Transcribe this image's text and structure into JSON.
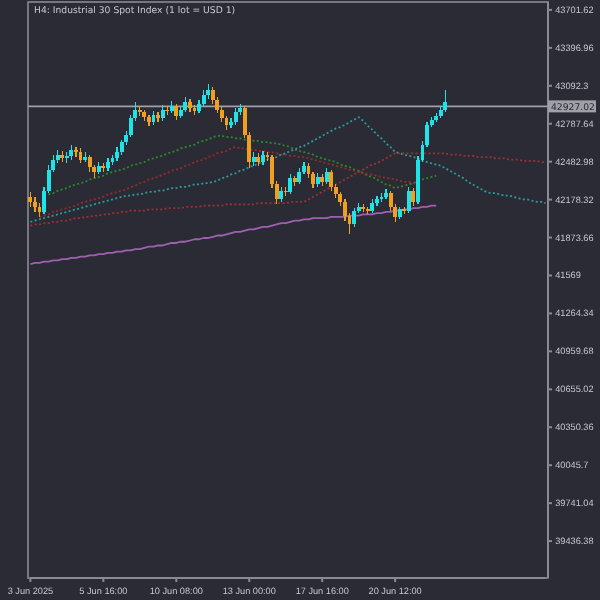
{
  "chart_data": {
    "type": "candlestick",
    "title": "H4: Industrial 30 Spot Index (1 lot = USD 1)",
    "categories": [
      "3 Jun 2025",
      null,
      null,
      null,
      null,
      null,
      null,
      null,
      null,
      null,
      null,
      null,
      null,
      null,
      null,
      null,
      "5 Jun 16:00",
      null,
      null,
      null,
      null,
      null,
      null,
      null,
      null,
      null,
      null,
      null,
      null,
      null,
      null,
      null,
      "10 Jun 08:00",
      null,
      null,
      null,
      null,
      null,
      null,
      null,
      null,
      null,
      null,
      null,
      null,
      null,
      null,
      null,
      "13 Jun 00:00",
      null,
      null,
      null,
      null,
      null,
      null,
      null,
      null,
      null,
      null,
      null,
      null,
      null,
      null,
      null,
      "17 Jun 16:00",
      null,
      null,
      null,
      null,
      null,
      null,
      null,
      null,
      null,
      null,
      null,
      null,
      null,
      null,
      null,
      "20 Jun 12:00",
      null,
      null,
      null,
      null,
      null,
      null,
      null,
      null,
      null,
      null,
      null,
      null,
      null,
      null,
      null,
      null,
      null,
      null,
      null,
      null,
      null,
      null,
      null,
      null,
      null,
      null,
      null,
      null,
      null,
      null,
      null,
      null,
      null
    ],
    "ohlc": [
      [
        42200,
        42240,
        42120,
        42160
      ],
      [
        42160,
        42200,
        42080,
        42120
      ],
      [
        42120,
        42150,
        42040,
        42080
      ],
      [
        42080,
        42280,
        42060,
        42250
      ],
      [
        42250,
        42460,
        42230,
        42420
      ],
      [
        42420,
        42540,
        42400,
        42500
      ],
      [
        42500,
        42580,
        42470,
        42540
      ],
      [
        42540,
        42570,
        42480,
        42510
      ],
      [
        42510,
        42560,
        42470,
        42530
      ],
      [
        42530,
        42620,
        42500,
        42580
      ],
      [
        42580,
        42600,
        42520,
        42560
      ],
      [
        42560,
        42590,
        42470,
        42500
      ],
      [
        42500,
        42560,
        42480,
        42520
      ],
      [
        42520,
        42540,
        42400,
        42440
      ],
      [
        42440,
        42460,
        42350,
        42400
      ],
      [
        42400,
        42480,
        42380,
        42450
      ],
      [
        42450,
        42470,
        42400,
        42430
      ],
      [
        42430,
        42510,
        42410,
        42480
      ],
      [
        42480,
        42540,
        42460,
        42510
      ],
      [
        42510,
        42600,
        42490,
        42560
      ],
      [
        42560,
        42660,
        42540,
        42640
      ],
      [
        42640,
        42730,
        42620,
        42700
      ],
      [
        42700,
        42860,
        42680,
        42830
      ],
      [
        42830,
        42960,
        42810,
        42900
      ],
      [
        42900,
        42930,
        42850,
        42880
      ],
      [
        42880,
        42900,
        42810,
        42840
      ],
      [
        42840,
        42860,
        42770,
        42800
      ],
      [
        42800,
        42890,
        42780,
        42860
      ],
      [
        42860,
        42880,
        42800,
        42830
      ],
      [
        42830,
        42940,
        42810,
        42900
      ],
      [
        42900,
        42930,
        42860,
        42890
      ],
      [
        42890,
        42970,
        42870,
        42930
      ],
      [
        42930,
        42950,
        42820,
        42850
      ],
      [
        42850,
        42930,
        42830,
        42900
      ],
      [
        42900,
        43000,
        42880,
        42960
      ],
      [
        42960,
        42990,
        42880,
        42910
      ],
      [
        42910,
        42940,
        42860,
        42890
      ],
      [
        42890,
        42980,
        42870,
        42950
      ],
      [
        42950,
        43060,
        42930,
        43020
      ],
      [
        43020,
        43110,
        42990,
        43060
      ],
      [
        43060,
        43080,
        42950,
        42980
      ],
      [
        42980,
        43000,
        42870,
        42900
      ],
      [
        42900,
        42920,
        42800,
        42830
      ],
      [
        42830,
        42850,
        42740,
        42780
      ],
      [
        42780,
        42830,
        42750,
        42800
      ],
      [
        42800,
        42910,
        42780,
        42880
      ],
      [
        42880,
        42950,
        42860,
        42910
      ],
      [
        42910,
        42930,
        42670,
        42700
      ],
      [
        42700,
        42720,
        42430,
        42480
      ],
      [
        42480,
        42560,
        42450,
        42520
      ],
      [
        42520,
        42550,
        42450,
        42480
      ],
      [
        42480,
        42570,
        42460,
        42540
      ],
      [
        42540,
        42560,
        42490,
        42520
      ],
      [
        42520,
        42540,
        42270,
        42300
      ],
      [
        42300,
        42330,
        42140,
        42180
      ],
      [
        42180,
        42280,
        42160,
        42250
      ],
      [
        42250,
        42280,
        42210,
        42240
      ],
      [
        42240,
        42380,
        42220,
        42350
      ],
      [
        42350,
        42370,
        42290,
        42320
      ],
      [
        42320,
        42430,
        42300,
        42400
      ],
      [
        42400,
        42480,
        42380,
        42450
      ],
      [
        42450,
        42470,
        42350,
        42380
      ],
      [
        42380,
        42400,
        42270,
        42300
      ],
      [
        42300,
        42390,
        42280,
        42360
      ],
      [
        42360,
        42380,
        42290,
        42320
      ],
      [
        42320,
        42430,
        42300,
        42400
      ],
      [
        42400,
        42420,
        42250,
        42280
      ],
      [
        42280,
        42300,
        42190,
        42220
      ],
      [
        42220,
        42240,
        42130,
        42160
      ],
      [
        42160,
        42180,
        42010,
        42050
      ],
      [
        42050,
        42070,
        41900,
        41980
      ],
      [
        41980,
        42110,
        41960,
        42090
      ],
      [
        42090,
        42150,
        42070,
        42120
      ],
      [
        42120,
        42140,
        42080,
        42100
      ],
      [
        42100,
        42120,
        42060,
        42090
      ],
      [
        42090,
        42180,
        42070,
        42150
      ],
      [
        42150,
        42210,
        42130,
        42180
      ],
      [
        42180,
        42230,
        42160,
        42200
      ],
      [
        42200,
        42260,
        42180,
        42230
      ],
      [
        42230,
        42250,
        42090,
        42120
      ],
      [
        42120,
        42140,
        42000,
        42040
      ],
      [
        42040,
        42120,
        42020,
        42100
      ],
      [
        42100,
        42120,
        42060,
        42090
      ],
      [
        42090,
        42280,
        42070,
        42250
      ],
      [
        42250,
        42270,
        42130,
        42160
      ],
      [
        42160,
        42530,
        42140,
        42500
      ],
      [
        42500,
        42650,
        42480,
        42620
      ],
      [
        42620,
        42800,
        42600,
        42780
      ],
      [
        42780,
        42840,
        42760,
        42820
      ],
      [
        42820,
        42870,
        42800,
        42850
      ],
      [
        42850,
        42930,
        42830,
        42900
      ],
      [
        42900,
        43060,
        42880,
        42960
      ],
      null,
      null,
      null,
      null,
      null,
      null,
      null,
      null,
      null,
      null,
      null,
      null,
      null,
      null,
      null,
      null,
      null,
      null,
      null,
      null,
      null,
      null
    ],
    "colors": [
      "#f0a020",
      "#f0a020",
      "#f0a020",
      "#1ee3e8",
      "#1ee3e8",
      "#1ee3e8",
      "#1ee3e8",
      "#f0a020",
      "#1ee3e8",
      "#1ee3e8",
      "#f0a020",
      "#f0a020",
      "#1ee3e8",
      "#f0a020",
      "#f0a020",
      "#1ee3e8",
      "#f0a020",
      "#1ee3e8",
      "#1ee3e8",
      "#1ee3e8",
      "#1ee3e8",
      "#1ee3e8",
      "#1ee3e8",
      "#1ee3e8",
      "#f0a020",
      "#f0a020",
      "#f0a020",
      "#1ee3e8",
      "#f0a020",
      "#1ee3e8",
      "#f0a020",
      "#1ee3e8",
      "#f0a020",
      "#1ee3e8",
      "#1ee3e8",
      "#f0a020",
      "#f0a020",
      "#1ee3e8",
      "#1ee3e8",
      "#1ee3e8",
      "#f0a020",
      "#f0a020",
      "#f0a020",
      "#f0a020",
      "#1ee3e8",
      "#1ee3e8",
      "#1ee3e8",
      "#f0a020",
      "#f0a020",
      "#1ee3e8",
      "#f0a020",
      "#1ee3e8",
      "#f0a020",
      "#f0a020",
      "#f0a020",
      "#1ee3e8",
      "#f0a020",
      "#1ee3e8",
      "#f0a020",
      "#1ee3e8",
      "#1ee3e8",
      "#f0a020",
      "#f0a020",
      "#1ee3e8",
      "#f0a020",
      "#1ee3e8",
      "#f0a020",
      "#f0a020",
      "#f0a020",
      "#f0a020",
      "#f0a020",
      "#1ee3e8",
      "#1ee3e8",
      "#f0a020",
      "#f0a020",
      "#1ee3e8",
      "#1ee3e8",
      "#1ee3e8",
      "#1ee3e8",
      "#f0a020",
      "#f0a020",
      "#1ee3e8",
      "#f0a020",
      "#1ee3e8",
      "#f0a020",
      "#1ee3e8",
      "#1ee3e8",
      "#1ee3e8",
      "#1ee3e8",
      "#1ee3e8",
      "#1ee3e8",
      "#1ee3e8",
      null,
      null,
      null,
      null,
      null,
      null,
      null,
      null,
      null,
      null,
      null,
      null,
      null,
      null,
      null,
      null,
      null,
      null,
      null,
      null,
      null,
      null
    ],
    "series": [
      {
        "type": "line",
        "color": "#a060b0",
        "line_style": "solid",
        "values": [
          41660,
          41670,
          41670,
          41680,
          41680,
          41690,
          41690,
          41700,
          41700,
          41710,
          41710,
          41720,
          41720,
          41730,
          41730,
          41740,
          41740,
          41750,
          41750,
          41760,
          41760,
          41770,
          41770,
          41780,
          41780,
          41790,
          41800,
          41800,
          41810,
          41810,
          41820,
          41830,
          41830,
          41840,
          41840,
          41850,
          41860,
          41860,
          41870,
          41870,
          41880,
          41890,
          41890,
          41900,
          41910,
          41920,
          41920,
          41930,
          41940,
          41940,
          41950,
          41960,
          41960,
          41970,
          41980,
          41990,
          41990,
          42000,
          42010,
          42010,
          42020,
          42020,
          42030,
          42030,
          42030,
          42030,
          42040,
          42040,
          42040,
          42040,
          42050,
          42050,
          42050,
          42060,
          42060,
          42060,
          42070,
          42070,
          42080,
          42080,
          42090,
          42090,
          42100,
          42100,
          42110,
          42110,
          42120,
          42120,
          42130,
          42130,
          null,
          null,
          null,
          null,
          null,
          null,
          null,
          null,
          null,
          null,
          null,
          null,
          null,
          null,
          null,
          null,
          null,
          null,
          null,
          null,
          null,
          null,
          null,
          null
        ]
      },
      {
        "type": "line",
        "color": "#2a8a2a",
        "line_style": "dotted",
        "values": [
          null,
          null,
          null,
          42210,
          42220,
          42230,
          42250,
          42260,
          42270,
          42290,
          42300,
          42310,
          42320,
          42340,
          42350,
          42360,
          42370,
          42390,
          42400,
          42410,
          42420,
          42430,
          42450,
          42460,
          42470,
          42480,
          42500,
          42510,
          42520,
          42530,
          42550,
          42560,
          42570,
          42590,
          42600,
          42610,
          42620,
          42640,
          42650,
          42660,
          42680,
          42690,
          42690,
          42680,
          42680,
          42670,
          42670,
          42660,
          42660,
          42650,
          42650,
          42640,
          42640,
          42630,
          42630,
          42620,
          42610,
          42600,
          42580,
          42570,
          42560,
          42550,
          42540,
          42520,
          42510,
          42500,
          42490,
          42480,
          42460,
          42450,
          42440,
          42420,
          42410,
          42390,
          42370,
          42360,
          42340,
          42320,
          42300,
          42290,
          42270,
          42280,
          42290,
          42300,
          42310,
          42330,
          42340,
          42350,
          42360,
          42370,
          null,
          null,
          null,
          null,
          null,
          null,
          null,
          null,
          null,
          null,
          null,
          null,
          null,
          null,
          null,
          null,
          null,
          null,
          null,
          null,
          null,
          null,
          null,
          null
        ]
      },
      {
        "type": "line",
        "color": "#9a2a2a",
        "line_style": "dotted",
        "values": [
          null,
          null,
          42040,
          42050,
          42060,
          42080,
          42090,
          42100,
          42110,
          42120,
          42130,
          42150,
          42160,
          42170,
          42180,
          42190,
          42200,
          42220,
          42230,
          42240,
          42250,
          42260,
          42280,
          42290,
          42310,
          42320,
          42340,
          42350,
          42360,
          42380,
          42390,
          42410,
          42420,
          42430,
          42450,
          42460,
          42480,
          42490,
          42500,
          42520,
          42530,
          42550,
          42560,
          42570,
          42590,
          42600,
          42590,
          42590,
          42580,
          42580,
          42570,
          42570,
          42560,
          42560,
          42550,
          42540,
          42540,
          42530,
          42530,
          42520,
          42520,
          42510,
          42500,
          42490,
          42480,
          42470,
          42460,
          42450,
          42440,
          42430,
          42420,
          42410,
          42400,
          42390,
          42380,
          42380,
          42370,
          42360,
          42350,
          42350,
          42340,
          42330,
          42320,
          42320,
          42310,
          42300,
          null,
          null,
          null,
          null,
          null,
          null,
          null,
          null,
          null,
          null,
          null,
          null,
          null,
          null,
          null,
          null,
          null,
          null,
          null,
          null,
          null,
          null,
          null,
          null,
          null,
          null,
          null,
          null
        ]
      },
      {
        "type": "line",
        "color": "#2a9a9a",
        "line_style": "dotted",
        "values": [
          42000,
          42010,
          42020,
          42030,
          42040,
          42050,
          42060,
          42070,
          42080,
          42090,
          42100,
          42110,
          42120,
          42130,
          42140,
          42150,
          42160,
          42170,
          42180,
          42190,
          42200,
          42210,
          42210,
          42220,
          42220,
          42230,
          42240,
          42240,
          42250,
          42250,
          42260,
          42270,
          42270,
          42280,
          42280,
          42290,
          42300,
          42300,
          42310,
          42310,
          42320,
          42330,
          42350,
          42360,
          42380,
          42390,
          42410,
          42420,
          42440,
          42450,
          42470,
          42480,
          42500,
          42510,
          42520,
          42540,
          42550,
          42570,
          42580,
          42600,
          42610,
          42630,
          42650,
          42670,
          42690,
          42710,
          42730,
          42750,
          42760,
          42780,
          42800,
          42820,
          42840,
          42810,
          42770,
          42740,
          42700,
          42670,
          42630,
          42600,
          42560,
          42550,
          42540,
          42530,
          42520,
          42510,
          42490,
          42480,
          42470,
          42460,
          42450,
          42430,
          42410,
          42390,
          42370,
          42350,
          42320,
          42300,
          42280,
          42260,
          42240,
          42230,
          42230,
          42220,
          42210,
          42210,
          42200,
          42190,
          42180,
          42180,
          42170,
          42160,
          42160,
          42150
        ]
      },
      {
        "type": "line",
        "color": "#a03030",
        "line_style": "dotted",
        "values": [
          41970,
          41980,
          41980,
          41990,
          41990,
          42000,
          42000,
          42010,
          42010,
          42020,
          42030,
          42030,
          42040,
          42040,
          42050,
          42050,
          42060,
          42060,
          42070,
          42070,
          42080,
          42080,
          42090,
          42090,
          42090,
          42090,
          42100,
          42100,
          42100,
          42100,
          42110,
          42110,
          42110,
          42110,
          42120,
          42120,
          42120,
          42120,
          42130,
          42130,
          42130,
          42130,
          42130,
          42140,
          42140,
          42140,
          42140,
          42140,
          42140,
          42140,
          42150,
          42150,
          42150,
          42150,
          42150,
          42150,
          42150,
          42160,
          42160,
          42160,
          42160,
          42180,
          42200,
          42220,
          42240,
          42260,
          42280,
          42300,
          42320,
          42340,
          42360,
          42380,
          42400,
          42420,
          42440,
          42460,
          42470,
          42490,
          42510,
          42530,
          42550,
          42550,
          42550,
          42550,
          42550,
          42550,
          42550,
          42550,
          42550,
          42550,
          42550,
          42550,
          42540,
          42540,
          42540,
          42530,
          42530,
          42530,
          42520,
          42520,
          42520,
          42520,
          42510,
          42510,
          42510,
          42500,
          42500,
          42500,
          42490,
          42490,
          42490,
          42490,
          42480,
          42480
        ]
      }
    ],
    "ylim": [
      39140,
      43765
    ],
    "yticks": [
      39436.38,
      39741.04,
      40045.7,
      40350.36,
      40655.02,
      40959.68,
      41264.34,
      41569.0,
      41873.66,
      42178.32,
      42482.98,
      42787.64,
      43092.3,
      43396.96,
      43701.62
    ],
    "ref_lines": [
      {
        "axis": "y",
        "value": 42927.02,
        "label": "42927.02",
        "color": "#a0a0a8"
      }
    ],
    "grid": false
  }
}
